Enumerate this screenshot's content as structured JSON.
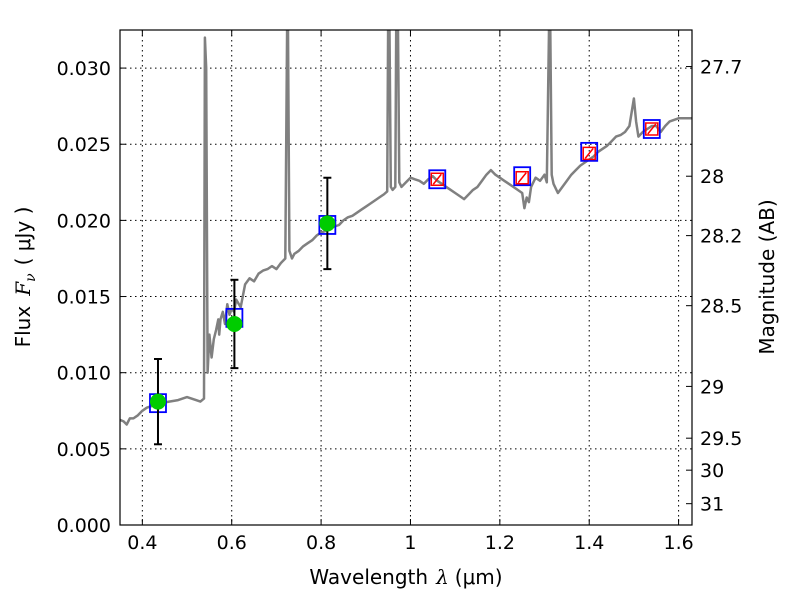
{
  "chart_data": {
    "type": "line",
    "xlabel_text": "Wavelength",
    "xlabel_symbol": "λ",
    "xlabel_unit": "(μm)",
    "ylabel_text": "Flux",
    "ylabel_symbol": "F",
    "ylabel_sub": "ν",
    "ylabel_unit": "( μJy )",
    "ylabel_right": "Magnitude (AB)",
    "xlim": [
      0.35,
      1.63
    ],
    "ylim": [
      0.0,
      0.0325
    ],
    "x_ticks": [
      0.4,
      0.6,
      0.8,
      1.0,
      1.2,
      1.4,
      1.6
    ],
    "x_tick_labels": [
      "0.4",
      "0.6",
      "0.8",
      "1",
      "1.2",
      "1.4",
      "1.6"
    ],
    "y_ticks": [
      0.0,
      0.005,
      0.01,
      0.015,
      0.02,
      0.025,
      0.03
    ],
    "y_tick_labels": [
      "0.000",
      "0.005",
      "0.010",
      "0.015",
      "0.020",
      "0.025",
      "0.030"
    ],
    "right_ticks": [
      {
        "label": "27.7",
        "flux": 0.0301
      },
      {
        "label": "28",
        "flux": 0.0229
      },
      {
        "label": "28.2",
        "flux": 0.019
      },
      {
        "label": "28.5",
        "flux": 0.0144
      },
      {
        "label": "29",
        "flux": 0.0091
      },
      {
        "label": "29.5",
        "flux": 0.0057
      },
      {
        "label": "30",
        "flux": 0.0036
      },
      {
        "label": "31",
        "flux": 0.0014
      }
    ],
    "grid": true,
    "colors": {
      "model": "#808080",
      "observed": "#00cc00",
      "synthetic": "#0000ff",
      "upper_limit": "#ff0000",
      "errorbar": "#000000"
    },
    "series": [
      {
        "kind": "model-spectrum",
        "points": [
          [
            0.35,
            0.0069
          ],
          [
            0.358,
            0.0068
          ],
          [
            0.365,
            0.0066
          ],
          [
            0.372,
            0.007
          ],
          [
            0.38,
            0.007
          ],
          [
            0.39,
            0.0072
          ],
          [
            0.4,
            0.0075
          ],
          [
            0.41,
            0.0077
          ],
          [
            0.42,
            0.0078
          ],
          [
            0.44,
            0.008
          ],
          [
            0.46,
            0.0081
          ],
          [
            0.48,
            0.0082
          ],
          [
            0.5,
            0.0084
          ],
          [
            0.52,
            0.0082
          ],
          [
            0.53,
            0.0081
          ],
          [
            0.538,
            0.0083
          ],
          [
            0.54,
            0.032
          ],
          [
            0.543,
            0.03
          ],
          [
            0.546,
            0.01
          ],
          [
            0.55,
            0.0125
          ],
          [
            0.555,
            0.011
          ],
          [
            0.56,
            0.0122
          ],
          [
            0.565,
            0.0128
          ],
          [
            0.57,
            0.0135
          ],
          [
            0.572,
            0.0125
          ],
          [
            0.575,
            0.0135
          ],
          [
            0.58,
            0.014
          ],
          [
            0.585,
            0.0132
          ],
          [
            0.59,
            0.0145
          ],
          [
            0.595,
            0.0138
          ],
          [
            0.6,
            0.0142
          ],
          [
            0.605,
            0.014
          ],
          [
            0.61,
            0.0148
          ],
          [
            0.62,
            0.0143
          ],
          [
            0.63,
            0.0158
          ],
          [
            0.64,
            0.0162
          ],
          [
            0.65,
            0.016
          ],
          [
            0.66,
            0.0165
          ],
          [
            0.67,
            0.0167
          ],
          [
            0.68,
            0.0168
          ],
          [
            0.69,
            0.017
          ],
          [
            0.7,
            0.0168
          ],
          [
            0.71,
            0.0172
          ],
          [
            0.72,
            0.0175
          ],
          [
            0.724,
            0.0325
          ],
          [
            0.726,
            0.0325
          ],
          [
            0.729,
            0.018
          ],
          [
            0.735,
            0.0175
          ],
          [
            0.74,
            0.0178
          ],
          [
            0.75,
            0.018
          ],
          [
            0.76,
            0.0183
          ],
          [
            0.77,
            0.0185
          ],
          [
            0.78,
            0.0187
          ],
          [
            0.79,
            0.019
          ],
          [
            0.8,
            0.0192
          ],
          [
            0.81,
            0.0193
          ],
          [
            0.82,
            0.0195
          ],
          [
            0.83,
            0.0196
          ],
          [
            0.84,
            0.0197
          ],
          [
            0.85,
            0.02
          ],
          [
            0.86,
            0.0202
          ],
          [
            0.87,
            0.0203
          ],
          [
            0.88,
            0.0205
          ],
          [
            0.89,
            0.0207
          ],
          [
            0.9,
            0.0209
          ],
          [
            0.91,
            0.0211
          ],
          [
            0.92,
            0.0213
          ],
          [
            0.93,
            0.0215
          ],
          [
            0.94,
            0.0217
          ],
          [
            0.948,
            0.0219
          ],
          [
            0.95,
            0.0325
          ],
          [
            0.953,
            0.0325
          ],
          [
            0.956,
            0.0222
          ],
          [
            0.96,
            0.022
          ],
          [
            0.966,
            0.0222
          ],
          [
            0.968,
            0.0325
          ],
          [
            0.972,
            0.0325
          ],
          [
            0.975,
            0.0225
          ],
          [
            0.98,
            0.0222
          ],
          [
            0.99,
            0.0225
          ],
          [
            1.0,
            0.0228
          ],
          [
            1.01,
            0.0227
          ],
          [
            1.02,
            0.0226
          ],
          [
            1.03,
            0.0224
          ],
          [
            1.04,
            0.0227
          ],
          [
            1.05,
            0.0229
          ],
          [
            1.06,
            0.0226
          ],
          [
            1.07,
            0.0224
          ],
          [
            1.08,
            0.0222
          ],
          [
            1.09,
            0.022
          ],
          [
            1.1,
            0.0218
          ],
          [
            1.11,
            0.0216
          ],
          [
            1.12,
            0.0214
          ],
          [
            1.13,
            0.0217
          ],
          [
            1.14,
            0.022
          ],
          [
            1.15,
            0.0222
          ],
          [
            1.16,
            0.0226
          ],
          [
            1.17,
            0.023
          ],
          [
            1.18,
            0.0233
          ],
          [
            1.19,
            0.023
          ],
          [
            1.2,
            0.0228
          ],
          [
            1.21,
            0.0226
          ],
          [
            1.22,
            0.0224
          ],
          [
            1.23,
            0.0222
          ],
          [
            1.24,
            0.022
          ],
          [
            1.25,
            0.0218
          ],
          [
            1.255,
            0.0208
          ],
          [
            1.26,
            0.0215
          ],
          [
            1.265,
            0.0212
          ],
          [
            1.27,
            0.0222
          ],
          [
            1.28,
            0.0228
          ],
          [
            1.29,
            0.0226
          ],
          [
            1.3,
            0.023
          ],
          [
            1.305,
            0.0225
          ],
          [
            1.31,
            0.0325
          ],
          [
            1.313,
            0.0325
          ],
          [
            1.316,
            0.023
          ],
          [
            1.32,
            0.0224
          ],
          [
            1.33,
            0.0218
          ],
          [
            1.34,
            0.0222
          ],
          [
            1.35,
            0.0226
          ],
          [
            1.36,
            0.023
          ],
          [
            1.37,
            0.0233
          ],
          [
            1.38,
            0.0236
          ],
          [
            1.39,
            0.0238
          ],
          [
            1.4,
            0.024
          ],
          [
            1.41,
            0.0242
          ],
          [
            1.42,
            0.0245
          ],
          [
            1.43,
            0.0247
          ],
          [
            1.44,
            0.0249
          ],
          [
            1.45,
            0.0252
          ],
          [
            1.46,
            0.0255
          ],
          [
            1.47,
            0.0256
          ],
          [
            1.48,
            0.0258
          ],
          [
            1.49,
            0.0262
          ],
          [
            1.5,
            0.028
          ],
          [
            1.505,
            0.0265
          ],
          [
            1.51,
            0.0255
          ],
          [
            1.52,
            0.0258
          ],
          [
            1.53,
            0.026
          ],
          [
            1.54,
            0.0262
          ],
          [
            1.55,
            0.0262
          ],
          [
            1.56,
            0.0258
          ],
          [
            1.57,
            0.0262
          ],
          [
            1.58,
            0.0265
          ],
          [
            1.6,
            0.0267
          ],
          [
            1.63,
            0.0267
          ]
        ]
      },
      {
        "kind": "observed-photometry",
        "points": [
          {
            "x": 0.435,
            "y": 0.0081,
            "err": 0.0028
          },
          {
            "x": 0.606,
            "y": 0.0132,
            "err": 0.0029
          },
          {
            "x": 0.814,
            "y": 0.0198,
            "err": 0.003
          }
        ]
      },
      {
        "kind": "synthetic-photometry",
        "points": [
          {
            "x": 0.435,
            "y": 0.008
          },
          {
            "x": 0.606,
            "y": 0.0136
          },
          {
            "x": 0.814,
            "y": 0.0197
          },
          {
            "x": 1.06,
            "y": 0.0227
          },
          {
            "x": 1.25,
            "y": 0.0229
          },
          {
            "x": 1.4,
            "y": 0.0245
          },
          {
            "x": 1.54,
            "y": 0.026
          }
        ]
      },
      {
        "kind": "upper-limits",
        "points": [
          {
            "x": 1.06,
            "y": 0.0227
          },
          {
            "x": 1.25,
            "y": 0.0228
          },
          {
            "x": 1.4,
            "y": 0.0244
          },
          {
            "x": 1.54,
            "y": 0.026
          }
        ]
      }
    ]
  }
}
